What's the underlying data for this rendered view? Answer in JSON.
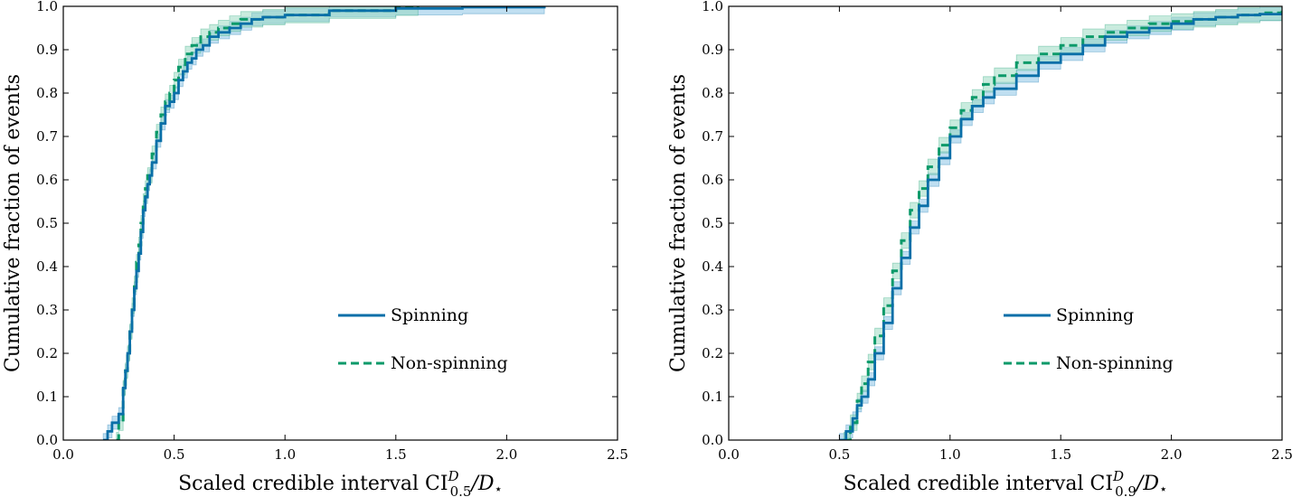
{
  "colors": {
    "spinning": "#0a6fa8",
    "spinning_band": "#8cc4e6",
    "nonspinning": "#0c9a6a",
    "nonspinning_band": "#93d7bd"
  },
  "chart_data": [
    {
      "type": "line",
      "xlabel_prefix": "Scaled credible interval CI",
      "xlabel_sub": "0.5",
      "xlabel_sup": "D",
      "xlabel_suffix": "/D",
      "xlabel_star": "⋆",
      "ylabel": "Cumulative fraction of events",
      "xlim": [
        0.0,
        2.5
      ],
      "ylim": [
        0.0,
        1.0
      ],
      "xticks": [
        0.0,
        0.5,
        1.0,
        1.5,
        2.0,
        2.5
      ],
      "xtick_labels": [
        "0.0",
        "0.5",
        "1.0",
        "1.5",
        "2.0",
        "2.5"
      ],
      "yticks": [
        0.0,
        0.1,
        0.2,
        0.3,
        0.4,
        0.5,
        0.6,
        0.7,
        0.8,
        0.9,
        1.0
      ],
      "ytick_labels": [
        "0.0",
        "0.1",
        "0.2",
        "0.3",
        "0.4",
        "0.5",
        "0.6",
        "0.7",
        "0.8",
        "0.9",
        "1.0"
      ],
      "legend_position": "center-right",
      "grid": false,
      "series": [
        {
          "name": "Spinning",
          "style": "solid",
          "x": [
            0.18,
            0.2,
            0.22,
            0.25,
            0.27,
            0.28,
            0.29,
            0.3,
            0.31,
            0.32,
            0.33,
            0.34,
            0.35,
            0.36,
            0.37,
            0.38,
            0.39,
            0.4,
            0.42,
            0.44,
            0.46,
            0.48,
            0.5,
            0.52,
            0.54,
            0.56,
            0.58,
            0.6,
            0.63,
            0.66,
            0.7,
            0.75,
            0.8,
            0.85,
            0.9,
            1.0,
            1.2,
            1.5,
            1.8,
            2.17
          ],
          "y": [
            0.0,
            0.02,
            0.04,
            0.06,
            0.12,
            0.16,
            0.2,
            0.25,
            0.3,
            0.35,
            0.39,
            0.43,
            0.48,
            0.53,
            0.56,
            0.59,
            0.61,
            0.64,
            0.69,
            0.73,
            0.77,
            0.78,
            0.8,
            0.83,
            0.85,
            0.87,
            0.88,
            0.9,
            0.91,
            0.93,
            0.94,
            0.95,
            0.96,
            0.97,
            0.975,
            0.98,
            0.99,
            0.995,
            0.998,
            1.0
          ],
          "band": 0.015
        },
        {
          "name": "Non-spinning",
          "style": "dashed",
          "x": [
            0.24,
            0.25,
            0.27,
            0.28,
            0.29,
            0.3,
            0.31,
            0.32,
            0.33,
            0.34,
            0.35,
            0.36,
            0.37,
            0.38,
            0.4,
            0.42,
            0.44,
            0.46,
            0.48,
            0.5,
            0.52,
            0.55,
            0.58,
            0.62,
            0.66,
            0.7,
            0.75,
            0.8,
            0.9,
            1.0,
            1.2,
            1.5,
            1.6
          ],
          "y": [
            0.0,
            0.04,
            0.12,
            0.16,
            0.2,
            0.25,
            0.31,
            0.36,
            0.41,
            0.45,
            0.5,
            0.55,
            0.58,
            0.61,
            0.66,
            0.71,
            0.75,
            0.78,
            0.8,
            0.83,
            0.86,
            0.89,
            0.91,
            0.93,
            0.94,
            0.95,
            0.96,
            0.97,
            0.975,
            0.98,
            0.99,
            0.997,
            1.0
          ],
          "band": 0.018
        }
      ]
    },
    {
      "type": "line",
      "xlabel_prefix": "Scaled credible interval CI",
      "xlabel_sub": "0.9",
      "xlabel_sup": "D",
      "xlabel_suffix": "/D",
      "xlabel_star": "⋆",
      "ylabel": "Cumulative fraction of events",
      "xlim": [
        0.0,
        2.5
      ],
      "ylim": [
        0.0,
        1.0
      ],
      "xticks": [
        0.0,
        0.5,
        1.0,
        1.5,
        2.0,
        2.5
      ],
      "xtick_labels": [
        "0.0",
        "0.5",
        "1.0",
        "1.5",
        "2.0",
        "2.5"
      ],
      "yticks": [
        0.0,
        0.1,
        0.2,
        0.3,
        0.4,
        0.5,
        0.6,
        0.7,
        0.8,
        0.9,
        1.0
      ],
      "ytick_labels": [
        "0.0",
        "0.1",
        "0.2",
        "0.3",
        "0.4",
        "0.5",
        "0.6",
        "0.7",
        "0.8",
        "0.9",
        "1.0"
      ],
      "legend_position": "center-right",
      "grid": false,
      "series": [
        {
          "name": "Spinning",
          "style": "solid",
          "x": [
            0.5,
            0.53,
            0.56,
            0.58,
            0.6,
            0.63,
            0.66,
            0.7,
            0.74,
            0.78,
            0.82,
            0.86,
            0.9,
            0.95,
            1.0,
            1.05,
            1.1,
            1.15,
            1.2,
            1.3,
            1.4,
            1.5,
            1.6,
            1.7,
            1.8,
            1.9,
            2.0,
            2.1,
            2.2,
            2.3,
            2.4,
            2.5
          ],
          "y": [
            0.0,
            0.02,
            0.05,
            0.08,
            0.1,
            0.14,
            0.2,
            0.27,
            0.35,
            0.42,
            0.49,
            0.54,
            0.6,
            0.65,
            0.7,
            0.74,
            0.77,
            0.79,
            0.81,
            0.84,
            0.87,
            0.89,
            0.91,
            0.93,
            0.94,
            0.95,
            0.96,
            0.97,
            0.975,
            0.98,
            0.982,
            0.985
          ],
          "band": 0.015
        },
        {
          "name": "Non-spinning",
          "style": "dashed",
          "x": [
            0.52,
            0.55,
            0.58,
            0.6,
            0.63,
            0.66,
            0.7,
            0.74,
            0.78,
            0.82,
            0.86,
            0.9,
            0.95,
            1.0,
            1.05,
            1.1,
            1.15,
            1.2,
            1.3,
            1.4,
            1.5,
            1.6,
            1.7,
            1.8,
            1.9,
            2.0,
            2.1,
            2.2,
            2.3,
            2.4,
            2.5
          ],
          "y": [
            0.0,
            0.04,
            0.09,
            0.13,
            0.18,
            0.24,
            0.31,
            0.39,
            0.46,
            0.53,
            0.58,
            0.63,
            0.68,
            0.72,
            0.76,
            0.79,
            0.82,
            0.84,
            0.87,
            0.89,
            0.91,
            0.93,
            0.94,
            0.95,
            0.96,
            0.965,
            0.97,
            0.975,
            0.98,
            0.985,
            0.99
          ],
          "band": 0.018
        }
      ]
    }
  ]
}
